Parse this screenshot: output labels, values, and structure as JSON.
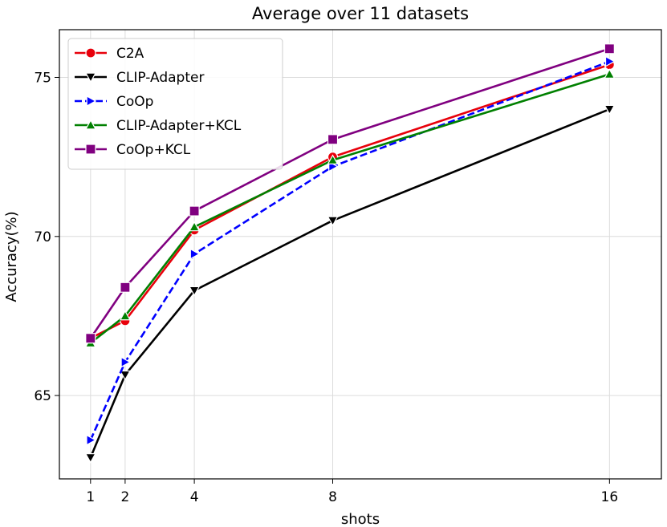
{
  "chart_data": {
    "type": "line",
    "title": "Average over 11 datasets",
    "xlabel": "shots",
    "ylabel": "Accuracy(%)",
    "x": [
      1,
      2,
      4,
      8,
      16
    ],
    "x_ticks": [
      "1",
      "2",
      "4",
      "8",
      "16"
    ],
    "y_ticks": [
      "65",
      "70",
      "75"
    ],
    "xlim": [
      0.1,
      17.5
    ],
    "ylim": [
      62.38,
      76.5
    ],
    "grid": true,
    "legend_position": "top-left",
    "series": [
      {
        "name": "C2A",
        "values": [
          66.8,
          67.35,
          70.2,
          72.5,
          75.4
        ],
        "color": "#e8000b",
        "marker": "circle"
      },
      {
        "name": "CLIP-Adapter",
        "values": [
          63.05,
          65.65,
          68.3,
          70.5,
          74.0
        ],
        "color": "#000000",
        "marker": "triangle-down"
      },
      {
        "name": "CoOp",
        "values": [
          63.6,
          66.05,
          69.45,
          72.2,
          75.5
        ],
        "color": "#0000ff",
        "marker": "triangle-right",
        "dashed": true
      },
      {
        "name": "CLIP-Adapter+KCL",
        "values": [
          66.65,
          67.5,
          70.3,
          72.4,
          75.1
        ],
        "color": "#008000",
        "marker": "triangle-up"
      },
      {
        "name": "CoOp+KCL",
        "values": [
          66.8,
          68.4,
          70.8,
          73.05,
          75.9
        ],
        "color": "#800080",
        "marker": "square"
      }
    ]
  }
}
